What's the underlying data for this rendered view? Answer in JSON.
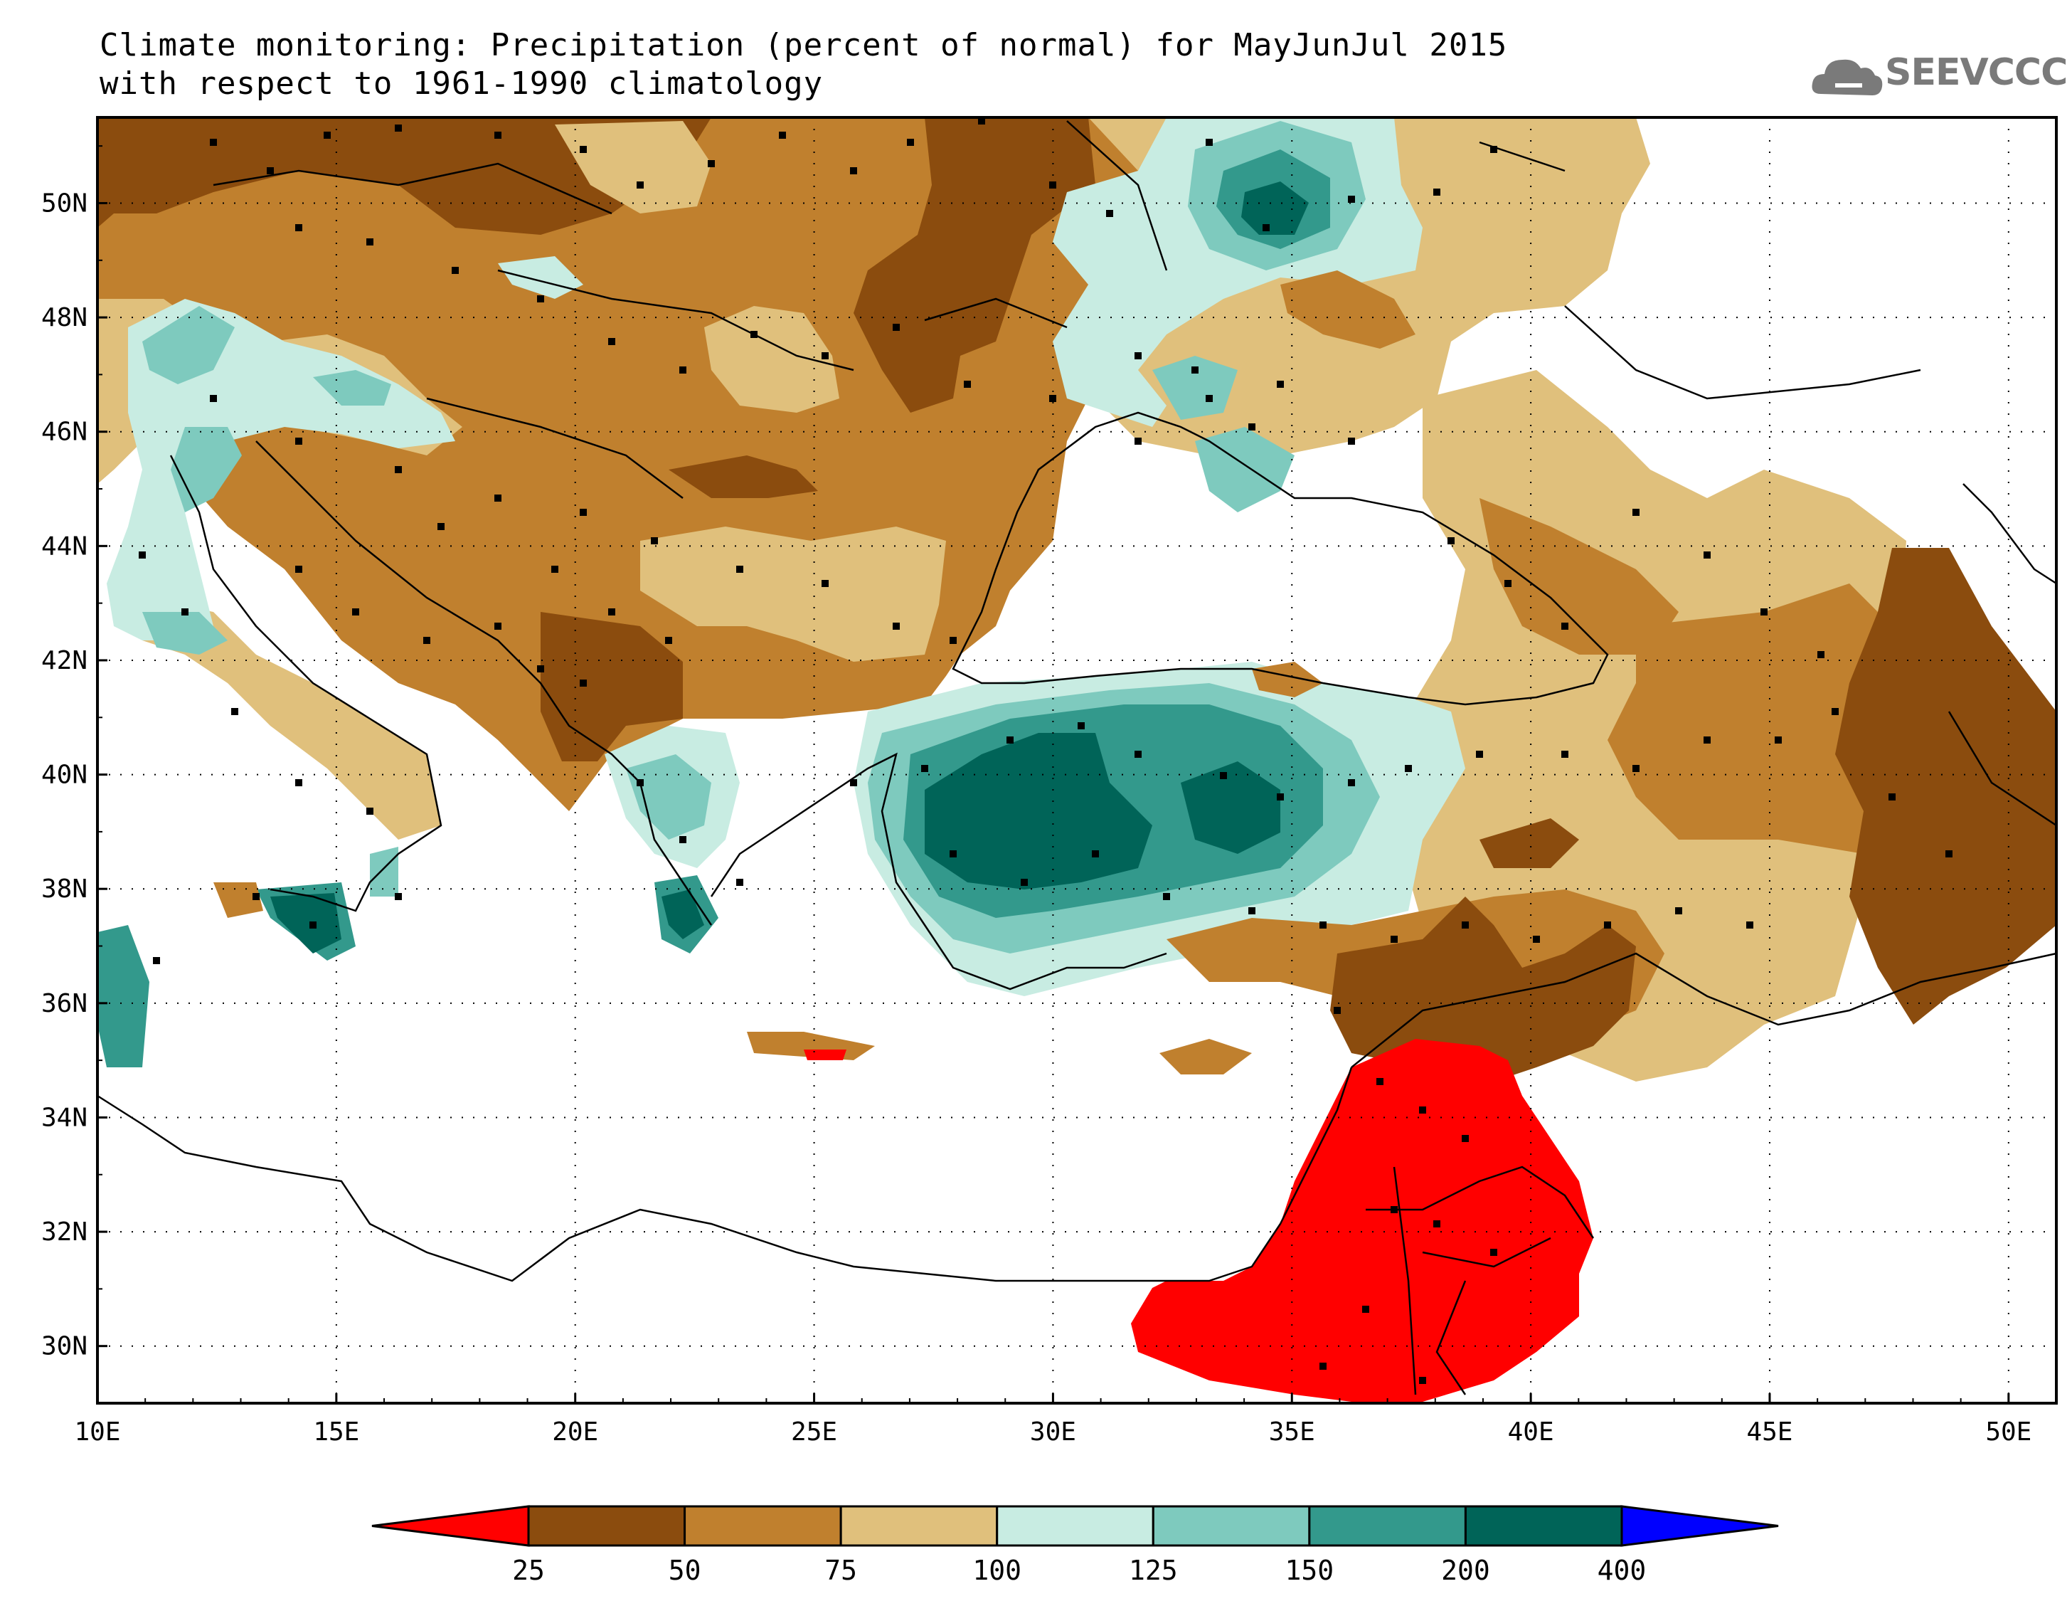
{
  "title": {
    "line1": "Climate monitoring: Precipitation (percent of normal) for MayJunJul 2015",
    "line2": "with respect to 1961-1990 climatology"
  },
  "logo": {
    "text": "SEEVCCC",
    "icon": "cloud-icon",
    "color": "#7a7a7a"
  },
  "map": {
    "lon_range": [
      10,
      51
    ],
    "lat_range": [
      29,
      51.5
    ],
    "x_ticks": [
      {
        "lon": 10,
        "label": "10E"
      },
      {
        "lon": 15,
        "label": "15E"
      },
      {
        "lon": 20,
        "label": "20E"
      },
      {
        "lon": 25,
        "label": "25E"
      },
      {
        "lon": 30,
        "label": "30E"
      },
      {
        "lon": 35,
        "label": "35E"
      },
      {
        "lon": 40,
        "label": "40E"
      },
      {
        "lon": 45,
        "label": "45E"
      },
      {
        "lon": 50,
        "label": "50E"
      }
    ],
    "y_ticks": [
      {
        "lat": 30,
        "label": "30N"
      },
      {
        "lat": 32,
        "label": "32N"
      },
      {
        "lat": 34,
        "label": "34N"
      },
      {
        "lat": 36,
        "label": "36N"
      },
      {
        "lat": 38,
        "label": "38N"
      },
      {
        "lat": 40,
        "label": "40N"
      },
      {
        "lat": 42,
        "label": "42N"
      },
      {
        "lat": 44,
        "label": "44N"
      },
      {
        "lat": 46,
        "label": "46N"
      },
      {
        "lat": 48,
        "label": "48N"
      },
      {
        "lat": 50,
        "label": "50N"
      }
    ],
    "grid": "dotted"
  },
  "legend": {
    "boundaries": [
      "25",
      "50",
      "75",
      "100",
      "125",
      "150",
      "200",
      "400"
    ],
    "colors": [
      "#ff0000",
      "#8b4c0e",
      "#c0802e",
      "#e0c07c",
      "#c8ece2",
      "#7ecabe",
      "#33998c",
      "#006458",
      "#0000ff"
    ]
  },
  "regions": [
    {
      "name": "red-dry-zone",
      "color": "#ff0000"
    },
    {
      "name": "very-dry-zone",
      "color": "#8b4c0e"
    },
    {
      "name": "dry-zone",
      "color": "#c0802e"
    },
    {
      "name": "slightly-dry-zone",
      "color": "#e0c07c"
    },
    {
      "name": "slightly-wet-zone",
      "color": "#c8ece2"
    },
    {
      "name": "wet-zone",
      "color": "#7ecabe"
    },
    {
      "name": "very-wet-zone",
      "color": "#33998c"
    },
    {
      "name": "extremely-wet-zone",
      "color": "#006458"
    }
  ]
}
